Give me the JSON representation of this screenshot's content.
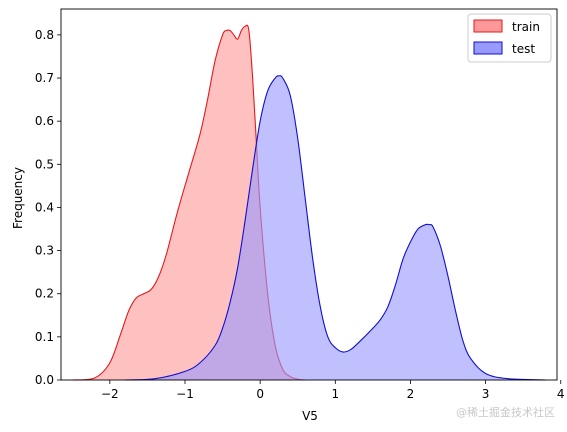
{
  "chart_data": {
    "type": "area",
    "xlabel": "V5",
    "ylabel": "Frequency",
    "xlim": [
      -2.65,
      3.95
    ],
    "ylim": [
      0,
      0.86
    ],
    "xticks": [
      -2,
      -1,
      0,
      1,
      2,
      3,
      4
    ],
    "yticks": [
      0.0,
      0.1,
      0.2,
      0.3,
      0.4,
      0.5,
      0.6,
      0.7,
      0.8
    ],
    "ytick_labels": [
      "0.0",
      "0.1",
      "0.2",
      "0.3",
      "0.4",
      "0.5",
      "0.6",
      "0.7",
      "0.8"
    ],
    "legend_position": "top-right",
    "grid": false,
    "series": [
      {
        "name": "train",
        "line_color": "#e31a1c",
        "fill_color": "#ff9999",
        "x": [
          -2.5,
          -2.2,
          -2.0,
          -1.85,
          -1.75,
          -1.65,
          -1.55,
          -1.45,
          -1.35,
          -1.25,
          -1.1,
          -0.95,
          -0.8,
          -0.7,
          -0.6,
          -0.5,
          -0.45,
          -0.4,
          -0.35,
          -0.3,
          -0.25,
          -0.2,
          -0.15,
          -0.1,
          -0.05,
          0.0,
          0.1,
          0.2,
          0.3,
          0.4,
          0.5,
          0.6
        ],
        "y": [
          0.0,
          0.005,
          0.04,
          0.11,
          0.16,
          0.19,
          0.2,
          0.21,
          0.24,
          0.29,
          0.39,
          0.48,
          0.57,
          0.65,
          0.74,
          0.8,
          0.81,
          0.81,
          0.8,
          0.79,
          0.81,
          0.82,
          0.81,
          0.7,
          0.55,
          0.4,
          0.2,
          0.08,
          0.025,
          0.008,
          0.002,
          0.0
        ]
      },
      {
        "name": "test",
        "line_color": "#1010cc",
        "fill_color": "#9999ff",
        "x": [
          -1.8,
          -1.4,
          -1.0,
          -0.8,
          -0.6,
          -0.5,
          -0.4,
          -0.3,
          -0.2,
          -0.1,
          0.0,
          0.1,
          0.2,
          0.25,
          0.3,
          0.4,
          0.5,
          0.6,
          0.7,
          0.8,
          0.9,
          1.0,
          1.1,
          1.2,
          1.3,
          1.5,
          1.6,
          1.7,
          1.8,
          1.9,
          2.0,
          2.1,
          2.2,
          2.25,
          2.3,
          2.4,
          2.5,
          2.6,
          2.7,
          2.8,
          3.0,
          3.3,
          3.8
        ],
        "y": [
          0.0,
          0.003,
          0.02,
          0.04,
          0.08,
          0.12,
          0.18,
          0.26,
          0.37,
          0.49,
          0.6,
          0.67,
          0.7,
          0.705,
          0.7,
          0.66,
          0.56,
          0.42,
          0.28,
          0.17,
          0.1,
          0.075,
          0.065,
          0.07,
          0.085,
          0.12,
          0.14,
          0.17,
          0.22,
          0.28,
          0.32,
          0.35,
          0.36,
          0.36,
          0.355,
          0.31,
          0.24,
          0.16,
          0.09,
          0.05,
          0.015,
          0.003,
          0.0
        ]
      }
    ]
  },
  "watermark": "@稀土掘金技术社区"
}
